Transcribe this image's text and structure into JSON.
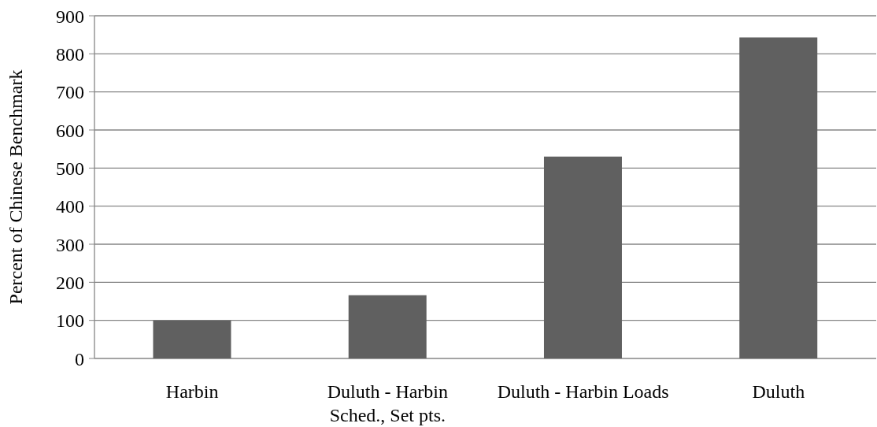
{
  "chart_data": {
    "type": "bar",
    "ylabel": "Percent of Chinese Benchmark",
    "categories": [
      "Harbin",
      "Duluth - Harbin Sched., Set pts.",
      "Duluth - Harbin Loads",
      "Duluth"
    ],
    "values": [
      100,
      166,
      530,
      843
    ],
    "color": "#606060",
    "ylim": [
      0,
      900
    ],
    "yticks": [
      0,
      100,
      200,
      300,
      400,
      500,
      600,
      700,
      800,
      900
    ],
    "grid": "y"
  }
}
